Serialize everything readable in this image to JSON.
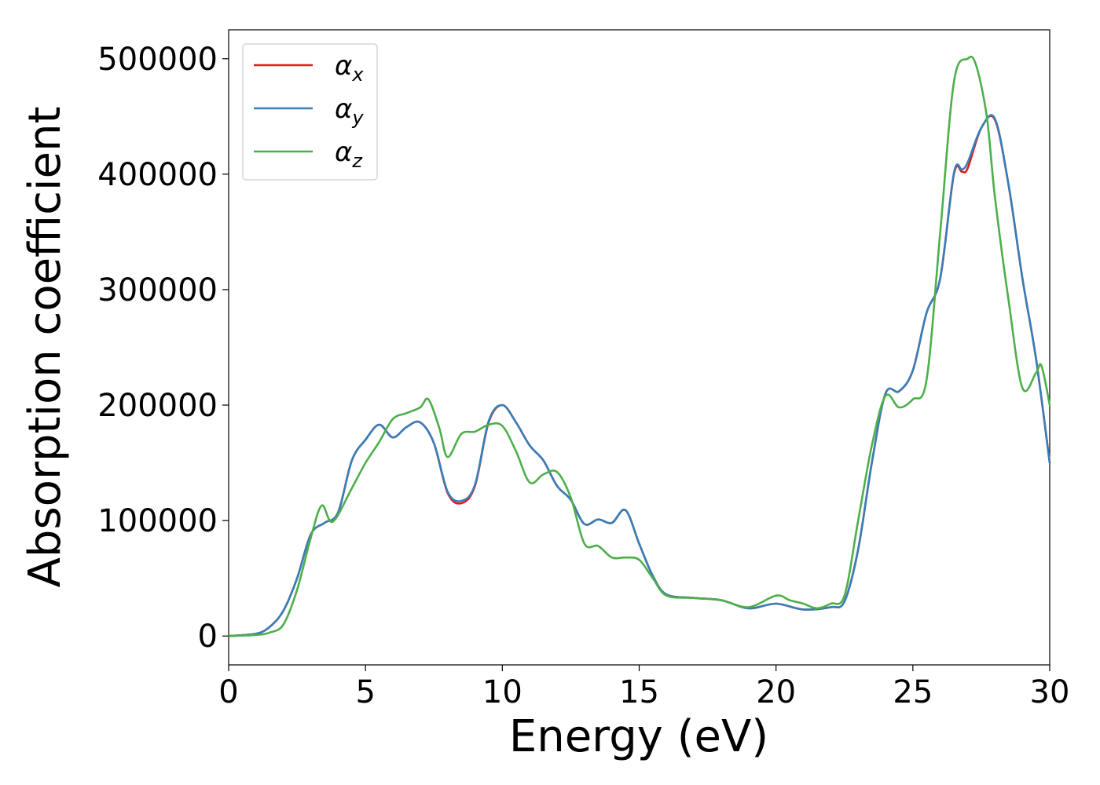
{
  "chart_data": {
    "type": "line",
    "xlabel": "Energy (eV)",
    "ylabel": "Absorption coefficient",
    "xlim": [
      0,
      30
    ],
    "ylim": [
      -25000,
      525000
    ],
    "xticks": [
      0,
      5,
      10,
      15,
      20,
      25,
      30
    ],
    "xtick_labels": [
      "0",
      "5",
      "10",
      "15",
      "20",
      "25",
      "30"
    ],
    "yticks": [
      0,
      100000,
      200000,
      300000,
      400000,
      500000
    ],
    "ytick_labels": [
      "0",
      "100000",
      "200000",
      "300000",
      "400000",
      "500000"
    ],
    "legend_position": "top-left",
    "grid": false,
    "series": [
      {
        "name": "α",
        "subscript": "x",
        "color": "#e41a1c",
        "x": [
          0,
          1,
          1.5,
          2,
          2.5,
          3,
          3.5,
          4,
          4.5,
          5,
          5.5,
          6,
          6.5,
          7,
          7.5,
          8,
          8.5,
          9,
          9.5,
          10,
          10.5,
          11,
          11.5,
          12,
          12.5,
          13,
          13.5,
          14,
          14.5,
          15,
          15.5,
          16,
          17,
          18,
          19,
          20,
          21,
          22,
          22.5,
          23,
          23.5,
          24,
          24.5,
          25,
          25.5,
          26,
          26.5,
          26.8,
          27,
          27.5,
          28,
          28.5,
          29,
          29.5,
          30
        ],
        "y": [
          0,
          2000,
          8000,
          22000,
          50000,
          88000,
          98000,
          107000,
          152000,
          170000,
          183000,
          172000,
          181000,
          185000,
          167000,
          124000,
          115000,
          130000,
          185000,
          200000,
          185000,
          165000,
          152000,
          130000,
          118000,
          97000,
          101000,
          98000,
          109000,
          80000,
          52000,
          36000,
          33000,
          31000,
          24000,
          28000,
          23000,
          25000,
          30000,
          75000,
          150000,
          210000,
          212000,
          230000,
          280000,
          310000,
          400000,
          402000,
          405000,
          440000,
          447000,
          390000,
          310000,
          240000,
          150000
        ]
      },
      {
        "name": "α",
        "subscript": "y",
        "color": "#377eb8",
        "x": [
          0,
          1,
          1.5,
          2,
          2.5,
          3,
          3.5,
          4,
          4.5,
          5,
          5.5,
          6,
          6.5,
          7,
          7.5,
          8,
          8.5,
          9,
          9.5,
          10,
          10.5,
          11,
          11.5,
          12,
          12.5,
          13,
          13.5,
          14,
          14.5,
          15,
          15.5,
          16,
          17,
          18,
          19,
          20,
          21,
          22,
          22.5,
          23,
          23.5,
          24,
          24.5,
          25,
          25.5,
          26,
          26.5,
          26.8,
          27,
          27.5,
          28,
          28.5,
          29,
          29.5,
          30
        ],
        "y": [
          0,
          2000,
          8000,
          22000,
          50000,
          88000,
          98000,
          107000,
          152000,
          170000,
          183000,
          172000,
          181000,
          185000,
          167000,
          125000,
          117000,
          131000,
          186000,
          200000,
          185000,
          165000,
          152000,
          130000,
          118000,
          97000,
          101000,
          98000,
          109000,
          80000,
          52000,
          36000,
          33000,
          31000,
          24000,
          28000,
          23000,
          25000,
          30000,
          75000,
          150000,
          210000,
          212000,
          230000,
          280000,
          310000,
          401000,
          404000,
          410000,
          440000,
          448000,
          390000,
          310000,
          240000,
          150000
        ]
      },
      {
        "name": "α",
        "subscript": "z",
        "color": "#4daf4a",
        "x": [
          0,
          1,
          1.5,
          2,
          2.5,
          3,
          3.4,
          3.8,
          4.5,
          5,
          5.5,
          6,
          6.5,
          7,
          7.3,
          7.7,
          8,
          8.5,
          9,
          9.5,
          10,
          10.5,
          11,
          11.5,
          12,
          12.5,
          13,
          13.5,
          14,
          14.5,
          15,
          15.5,
          16,
          17,
          18,
          19,
          20,
          20.5,
          21,
          21.5,
          22,
          22.5,
          23,
          23.5,
          24,
          24.5,
          25,
          25.5,
          26,
          26.5,
          27,
          27.3,
          27.7,
          28,
          28.5,
          29,
          29.5,
          29.7,
          30
        ],
        "y": [
          0,
          1000,
          3000,
          10000,
          40000,
          85000,
          113000,
          99000,
          128000,
          150000,
          168000,
          188000,
          193000,
          198000,
          205000,
          180000,
          155000,
          175000,
          177000,
          183000,
          182000,
          160000,
          133000,
          140000,
          142000,
          120000,
          80000,
          78000,
          68000,
          68000,
          66000,
          50000,
          35000,
          33000,
          31000,
          25000,
          35000,
          31000,
          28000,
          24000,
          28000,
          35000,
          100000,
          165000,
          208000,
          198000,
          205000,
          222000,
          350000,
          480000,
          500000,
          495000,
          450000,
          380000,
          290000,
          215000,
          228000,
          234000,
          200000
        ]
      }
    ]
  }
}
